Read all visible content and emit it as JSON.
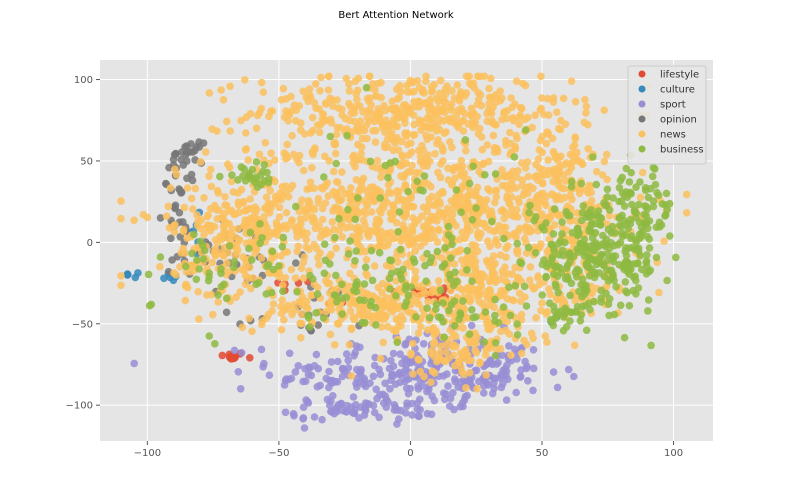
{
  "chart_data": {
    "type": "scatter",
    "title": "Bert Attention Network",
    "xlabel": "",
    "ylabel": "",
    "xlim": [
      -118,
      115
    ],
    "ylim": [
      -122,
      112
    ],
    "xticks": [
      -100,
      -50,
      0,
      50,
      100
    ],
    "yticks": [
      -100,
      -50,
      0,
      50,
      100
    ],
    "grid": true,
    "legend_position": "top-right",
    "series": [
      {
        "name": "lifestyle",
        "color": "#e24a33",
        "clusters": [
          {
            "cx": -68,
            "cy": -70,
            "sx": 2.5,
            "sy": 1.2,
            "n": 14
          },
          {
            "cx": 5,
            "cy": -31,
            "sx": 6,
            "sy": 1.5,
            "n": 16
          },
          {
            "cx": 13,
            "cy": -32,
            "sx": 2,
            "sy": 3,
            "n": 8
          },
          {
            "cx": -45,
            "cy": -27,
            "sx": 4,
            "sy": 2,
            "n": 5
          },
          {
            "cx": -28,
            "cy": -37,
            "sx": 2,
            "sy": 1,
            "n": 3
          }
        ]
      },
      {
        "name": "culture",
        "color": "#348abd",
        "clusters": [
          {
            "cx": -105,
            "cy": -20,
            "sx": 2,
            "sy": 1,
            "n": 5
          },
          {
            "cx": -88,
            "cy": -22,
            "sx": 3,
            "sy": 2,
            "n": 5
          },
          {
            "cx": -82,
            "cy": 10,
            "sx": 3,
            "sy": 10,
            "n": 6
          },
          {
            "cx": 55,
            "cy": -47,
            "sx": 2,
            "sy": 2,
            "n": 3
          }
        ]
      },
      {
        "name": "sport",
        "color": "#988ed5",
        "clusters": [
          {
            "cx": 0,
            "cy": -80,
            "sx": 26,
            "sy": 12,
            "n": 260
          },
          {
            "cx": -18,
            "cy": -103,
            "sx": 14,
            "sy": 3,
            "n": 60
          },
          {
            "cx": 28,
            "cy": -80,
            "sx": 10,
            "sy": 8,
            "n": 40
          }
        ]
      },
      {
        "name": "opinion",
        "color": "#777777",
        "clusters": [
          {
            "cx": -84,
            "cy": 55,
            "sx": 2.5,
            "sy": 3,
            "n": 20
          },
          {
            "cx": -88,
            "cy": 25,
            "sx": 3,
            "sy": 14,
            "n": 30
          },
          {
            "cx": -70,
            "cy": -10,
            "sx": 15,
            "sy": 12,
            "n": 40
          },
          {
            "cx": -40,
            "cy": -40,
            "sx": 12,
            "sy": 10,
            "n": 20
          }
        ]
      },
      {
        "name": "news",
        "color": "#fbc15e",
        "clusters": [
          {
            "cx": 0,
            "cy": 80,
            "sx": 30,
            "sy": 12,
            "n": 420
          },
          {
            "cx": 0,
            "cy": 20,
            "sx": 38,
            "sy": 22,
            "n": 900
          },
          {
            "cx": -65,
            "cy": 0,
            "sx": 13,
            "sy": 18,
            "n": 200
          },
          {
            "cx": 55,
            "cy": 30,
            "sx": 12,
            "sy": 22,
            "n": 160
          },
          {
            "cx": -15,
            "cy": -40,
            "sx": 22,
            "sy": 9,
            "n": 220
          },
          {
            "cx": 20,
            "cy": -65,
            "sx": 14,
            "sy": 10,
            "n": 110
          },
          {
            "cx": 25,
            "cy": -30,
            "sx": 15,
            "sy": 12,
            "n": 150
          },
          {
            "cx": 65,
            "cy": -20,
            "sx": 12,
            "sy": 15,
            "n": 70
          }
        ]
      },
      {
        "name": "business",
        "color": "#8eba42",
        "clusters": [
          {
            "cx": 70,
            "cy": -12,
            "sx": 13,
            "sy": 15,
            "n": 260
          },
          {
            "cx": 85,
            "cy": 20,
            "sx": 8,
            "sy": 14,
            "n": 90
          },
          {
            "cx": -60,
            "cy": 40,
            "sx": 5,
            "sy": 3,
            "n": 25
          },
          {
            "cx": -15,
            "cy": -25,
            "sx": 25,
            "sy": 14,
            "n": 90
          },
          {
            "cx": 10,
            "cy": 20,
            "sx": 30,
            "sy": 25,
            "n": 60
          },
          {
            "cx": 20,
            "cy": -45,
            "sx": 12,
            "sy": 7,
            "n": 30
          },
          {
            "cx": 58,
            "cy": -45,
            "sx": 4,
            "sy": 4,
            "n": 20
          },
          {
            "cx": -70,
            "cy": -15,
            "sx": 12,
            "sy": 15,
            "n": 35
          }
        ]
      }
    ]
  }
}
